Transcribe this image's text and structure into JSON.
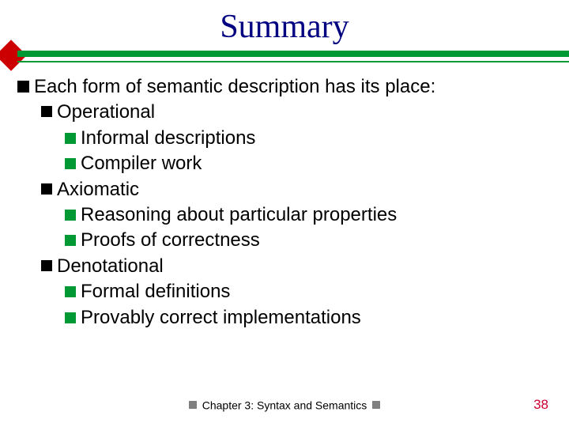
{
  "title": "Summary",
  "colors": {
    "title": "#000080",
    "ruleGreen": "#009933",
    "diamondRed": "#cc0000",
    "bulletBlack": "#000000",
    "bulletGreen": "#009933",
    "footerSquare": "#808080",
    "pageNum": "#cc0033",
    "background": "#ffffff"
  },
  "typography": {
    "title_fontsize": 42,
    "body_fontsize": 24,
    "footer_fontsize": 14,
    "pagenum_fontsize": 17,
    "title_font": "Times New Roman",
    "body_font": "Arial"
  },
  "bullets": {
    "lvl1": "Each form of semantic description has its place:",
    "operational": {
      "label": "Operational",
      "items": [
        "Informal descriptions",
        "Compiler work"
      ]
    },
    "axiomatic": {
      "label": "Axiomatic",
      "items": [
        "Reasoning about particular properties",
        "Proofs of correctness"
      ]
    },
    "denotational": {
      "label": "Denotational",
      "items": [
        "Formal definitions",
        "Provably correct implementations"
      ]
    }
  },
  "footer": "Chapter 3: Syntax and Semantics",
  "pageNumber": "38"
}
